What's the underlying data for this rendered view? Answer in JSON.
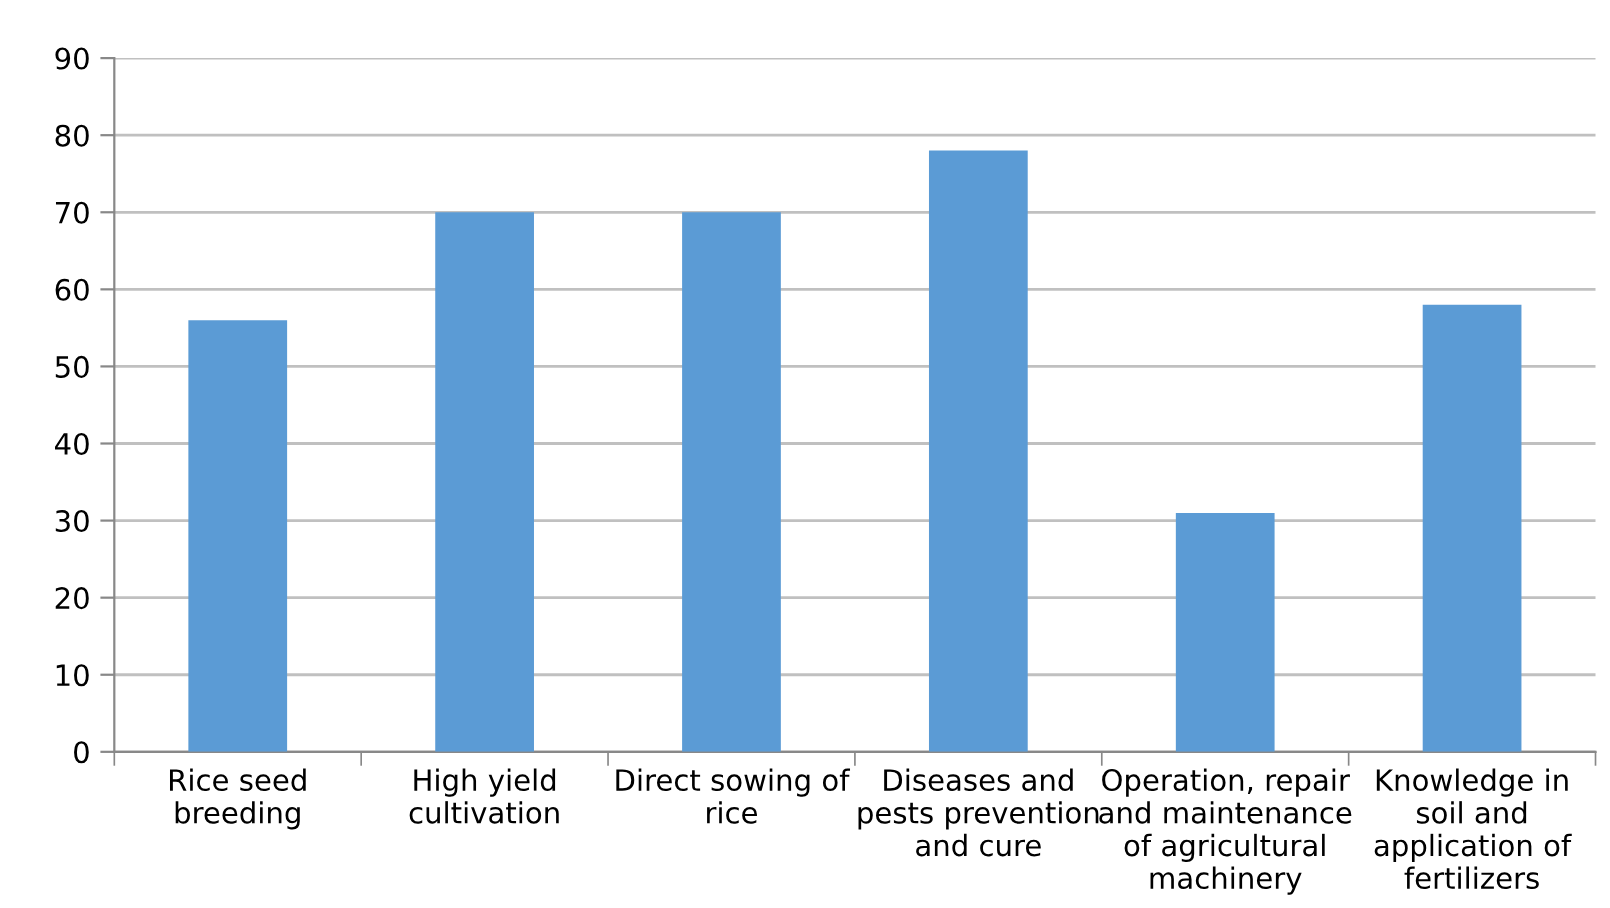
{
  "chart_data": {
    "type": "bar",
    "categories": [
      "Rice seed\nbreeding",
      "High yield\ncultivation",
      "Direct sowing of\nrice",
      "Diseases and\npests prevention\nand cure",
      "Operation, repair\nand maintenance\nof agricultural\nmachinery",
      "Knowledge in\nsoil and\napplication of\nfertilizers"
    ],
    "values": [
      56,
      70,
      70,
      78,
      31,
      58
    ],
    "color": "#5b9bd5",
    "ylim": [
      0,
      90
    ],
    "yticks": [
      0,
      10,
      20,
      30,
      40,
      50,
      60,
      70,
      80,
      90
    ],
    "grid": "y",
    "legend": false
  }
}
